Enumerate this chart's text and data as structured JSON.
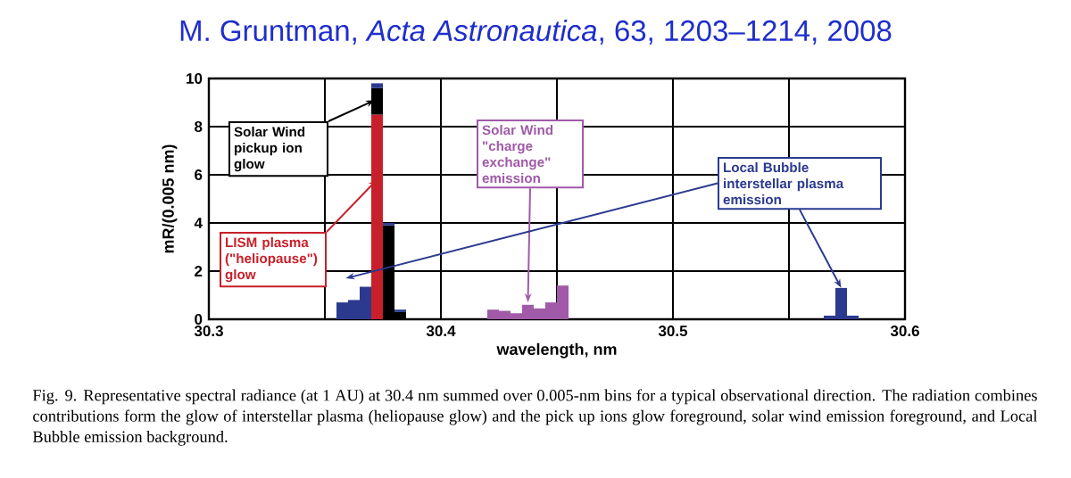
{
  "chart_data": {
    "type": "bar",
    "title": "M. Gruntman, *Acta Astronautica*, 63, 1203–1214, 2008",
    "xlabel": "wavelength,  nm",
    "ylabel": "mR/(0.005 nm)",
    "x": [
      30.3575,
      30.3625,
      30.3675,
      30.3725,
      30.3775,
      30.3825,
      30.4225,
      30.4275,
      30.4325,
      30.4375,
      30.4425,
      30.4475,
      30.4525,
      30.5675,
      30.5725,
      30.5775
    ],
    "stacked": true,
    "series": [
      {
        "color": "#c8202a",
        "values": [
          null,
          null,
          null,
          8.5,
          null,
          null,
          null,
          null,
          null,
          null,
          null,
          null,
          null,
          null,
          null,
          null
        ]
      },
      {
        "color": "#000000",
        "values": [
          null,
          null,
          null,
          1.1,
          3.9,
          0.3,
          null,
          null,
          null,
          null,
          null,
          null,
          null,
          null,
          null,
          null
        ]
      },
      {
        "color": "#a05aa8",
        "values": [
          null,
          null,
          null,
          null,
          null,
          null,
          0.4,
          0.35,
          0.25,
          0.6,
          0.45,
          0.7,
          1.4,
          null,
          null,
          null
        ]
      },
      {
        "color": "#2b3a8f",
        "values": [
          0.7,
          0.8,
          1.35,
          0.2,
          0.1,
          0.1,
          null,
          null,
          null,
          null,
          null,
          null,
          null,
          0.15,
          1.3,
          0.15
        ]
      }
    ],
    "xlim": [
      30.3,
      30.6
    ],
    "ylim": [
      0,
      10
    ],
    "xticks": [
      30.3,
      {
        "value": 30.35,
        "label": null
      },
      30.4,
      {
        "value": 30.45,
        "label": null
      },
      30.5,
      {
        "value": 30.55,
        "label": null
      },
      30.6
    ],
    "yticks": [
      0,
      2,
      4,
      6,
      8,
      10
    ],
    "grid": true,
    "annotations": [
      "Solar Wind pickup ion glow",
      {
        "text": "LISM plasma (\"heliopause\") glow",
        "x": 30.3725,
        "y": 5.8
      },
      {
        "text": "Solar Wind \"charge exchange\" emission",
        "x": 30.4375,
        "y": 0.7
      },
      {
        "text": "Local Bubble interstellar plasma emission",
        "x": 30.5725,
        "y": 1.3
      },
      "Fig. 9. Representative spectral radiance (at 1 AU) at 30.4 nm summed over 0.005-nm bins for a typical observational direction. The radiation combines contributions form the glow of interstellar plasma (heliopause glow) and the pick up ions glow foreground, solar wind emission foreground, and Local Bubble emission background."
    ]
  }
}
